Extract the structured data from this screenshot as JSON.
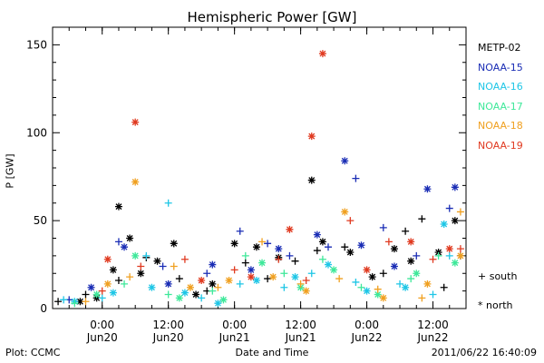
{
  "chart_data": {
    "type": "scatter",
    "title": "Hemispheric Power [GW]",
    "ylabel": "P [GW]",
    "xlabel": "Date and Time",
    "ylim": [
      0,
      160
    ],
    "y_ticks": [
      0,
      50,
      100,
      150
    ],
    "x_range": [
      "2011-06-19T15:00",
      "2011-06-22T18:00"
    ],
    "x_ticks": [
      {
        "time": "2011-06-20T00:00",
        "line1": "0:00",
        "line2": "Jun20"
      },
      {
        "time": "2011-06-20T12:00",
        "line1": "12:00",
        "line2": "Jun20"
      },
      {
        "time": "2011-06-21T00:00",
        "line1": "0:00",
        "line2": "Jun21"
      },
      {
        "time": "2011-06-21T12:00",
        "line1": "12:00",
        "line2": "Jun21"
      },
      {
        "time": "2011-06-22T00:00",
        "line1": "0:00",
        "line2": "Jun22"
      },
      {
        "time": "2011-06-22T12:00",
        "line1": "12:00",
        "line2": "Jun22"
      }
    ],
    "marker_key": [
      {
        "symbol": "+",
        "label": "south"
      },
      {
        "symbol": "*",
        "label": "north"
      }
    ],
    "series": [
      {
        "name": "METP-02",
        "color": "#000000",
        "south": [
          [
            "2011-06-19T16:00",
            4
          ],
          [
            "2011-06-19T21:00",
            8
          ],
          [
            "2011-06-20T03:00",
            16
          ],
          [
            "2011-06-20T08:00",
            29
          ],
          [
            "2011-06-20T14:00",
            17
          ],
          [
            "2011-06-20T19:00",
            10
          ],
          [
            "2011-06-21T02:00",
            26
          ],
          [
            "2011-06-21T06:00",
            17
          ],
          [
            "2011-06-21T11:00",
            27
          ],
          [
            "2011-06-21T15:00",
            33
          ],
          [
            "2011-06-21T20:00",
            35
          ],
          [
            "2011-06-22T03:00",
            20
          ],
          [
            "2011-06-22T07:00",
            44
          ],
          [
            "2011-06-22T10:00",
            51
          ],
          [
            "2011-06-22T14:00",
            12
          ],
          [
            "2011-06-22T17:00",
            30
          ]
        ],
        "north": [
          [
            "2011-06-19T20:00",
            4
          ],
          [
            "2011-06-19T23:00",
            6
          ],
          [
            "2011-06-20T02:00",
            22
          ],
          [
            "2011-06-20T03:00",
            58
          ],
          [
            "2011-06-20T05:00",
            40
          ],
          [
            "2011-06-20T07:00",
            20
          ],
          [
            "2011-06-20T10:00",
            27
          ],
          [
            "2011-06-20T13:00",
            37
          ],
          [
            "2011-06-20T17:00",
            8
          ],
          [
            "2011-06-20T20:00",
            14
          ],
          [
            "2011-06-21T00:00",
            37
          ],
          [
            "2011-06-21T04:00",
            35
          ],
          [
            "2011-06-21T08:00",
            29
          ],
          [
            "2011-06-21T14:00",
            73
          ],
          [
            "2011-06-21T16:00",
            38
          ],
          [
            "2011-06-21T21:00",
            32
          ],
          [
            "2011-06-22T01:00",
            18
          ],
          [
            "2011-06-22T05:00",
            34
          ],
          [
            "2011-06-22T08:00",
            27
          ],
          [
            "2011-06-22T13:00",
            32
          ],
          [
            "2011-06-22T16:00",
            50
          ]
        ]
      },
      {
        "name": "NOAA-15",
        "color": "#1a2db5",
        "south": [
          [
            "2011-06-19T18:00",
            5
          ],
          [
            "2011-06-20T03:00",
            38
          ],
          [
            "2011-06-20T11:00",
            24
          ],
          [
            "2011-06-20T19:00",
            20
          ],
          [
            "2011-06-21T01:00",
            44
          ],
          [
            "2011-06-21T06:00",
            37
          ],
          [
            "2011-06-21T10:00",
            30
          ],
          [
            "2011-06-21T17:00",
            35
          ],
          [
            "2011-06-21T22:00",
            74
          ],
          [
            "2011-06-22T03:00",
            46
          ],
          [
            "2011-06-22T09:00",
            30
          ],
          [
            "2011-06-22T15:00",
            57
          ]
        ],
        "north": [
          [
            "2011-06-19T22:00",
            12
          ],
          [
            "2011-06-20T04:00",
            35
          ],
          [
            "2011-06-20T12:00",
            14
          ],
          [
            "2011-06-20T20:00",
            25
          ],
          [
            "2011-06-21T03:00",
            22
          ],
          [
            "2011-06-21T08:00",
            34
          ],
          [
            "2011-06-21T15:00",
            42
          ],
          [
            "2011-06-21T20:00",
            84
          ],
          [
            "2011-06-21T23:00",
            36
          ],
          [
            "2011-06-22T05:00",
            24
          ],
          [
            "2011-06-22T11:00",
            68
          ],
          [
            "2011-06-22T16:00",
            69
          ]
        ]
      },
      {
        "name": "NOAA-16",
        "color": "#1ec6e6",
        "south": [
          [
            "2011-06-19T17:00",
            5
          ],
          [
            "2011-06-20T00:00",
            6
          ],
          [
            "2011-06-20T08:00",
            30
          ],
          [
            "2011-06-20T12:00",
            60
          ],
          [
            "2011-06-20T18:00",
            6
          ],
          [
            "2011-06-21T01:00",
            14
          ],
          [
            "2011-06-21T09:00",
            12
          ],
          [
            "2011-06-21T14:00",
            20
          ],
          [
            "2011-06-21T22:00",
            15
          ],
          [
            "2011-06-22T06:00",
            14
          ],
          [
            "2011-06-22T12:00",
            8
          ],
          [
            "2011-06-22T15:00",
            30
          ]
        ],
        "north": [
          [
            "2011-06-19T19:00",
            4
          ],
          [
            "2011-06-20T02:00",
            9
          ],
          [
            "2011-06-20T09:00",
            12
          ],
          [
            "2011-06-20T15:00",
            9
          ],
          [
            "2011-06-20T21:00",
            3
          ],
          [
            "2011-06-21T04:00",
            16
          ],
          [
            "2011-06-21T11:00",
            18
          ],
          [
            "2011-06-21T17:00",
            25
          ],
          [
            "2011-06-22T00:00",
            10
          ],
          [
            "2011-06-22T07:00",
            12
          ],
          [
            "2011-06-22T14:00",
            48
          ]
        ]
      },
      {
        "name": "NOAA-17",
        "color": "#3ee89a",
        "south": [
          [
            "2011-06-19T19:00",
            3
          ],
          [
            "2011-06-20T04:00",
            14
          ],
          [
            "2011-06-20T12:00",
            8
          ],
          [
            "2011-06-20T20:00",
            10
          ],
          [
            "2011-06-21T02:00",
            30
          ],
          [
            "2011-06-21T09:00",
            20
          ],
          [
            "2011-06-21T16:00",
            28
          ],
          [
            "2011-06-21T23:00",
            12
          ],
          [
            "2011-06-22T08:00",
            17
          ],
          [
            "2011-06-22T13:00",
            30
          ]
        ],
        "north": [
          [
            "2011-06-19T23:00",
            8
          ],
          [
            "2011-06-20T06:00",
            30
          ],
          [
            "2011-06-20T14:00",
            6
          ],
          [
            "2011-06-20T22:00",
            5
          ],
          [
            "2011-06-21T05:00",
            26
          ],
          [
            "2011-06-21T12:00",
            12
          ],
          [
            "2011-06-21T18:00",
            22
          ],
          [
            "2011-06-22T02:00",
            8
          ],
          [
            "2011-06-22T09:00",
            20
          ],
          [
            "2011-06-22T16:00",
            26
          ]
        ]
      },
      {
        "name": "NOAA-18",
        "color": "#f0a020",
        "south": [
          [
            "2011-06-19T21:00",
            4
          ],
          [
            "2011-06-20T05:00",
            18
          ],
          [
            "2011-06-20T13:00",
            24
          ],
          [
            "2011-06-20T21:00",
            12
          ],
          [
            "2011-06-21T05:00",
            38
          ],
          [
            "2011-06-21T12:00",
            14
          ],
          [
            "2011-06-21T19:00",
            17
          ],
          [
            "2011-06-22T02:00",
            11
          ],
          [
            "2011-06-22T10:00",
            6
          ],
          [
            "2011-06-22T17:00",
            55
          ]
        ],
        "north": [
          [
            "2011-06-20T01:00",
            14
          ],
          [
            "2011-06-20T06:00",
            72
          ],
          [
            "2011-06-20T16:00",
            12
          ],
          [
            "2011-06-20T23:00",
            16
          ],
          [
            "2011-06-21T07:00",
            18
          ],
          [
            "2011-06-21T13:00",
            10
          ],
          [
            "2011-06-21T20:00",
            55
          ],
          [
            "2011-06-22T03:00",
            6
          ],
          [
            "2011-06-22T11:00",
            14
          ],
          [
            "2011-06-22T17:00",
            30
          ]
        ]
      },
      {
        "name": "NOAA-19",
        "color": "#e03a20",
        "south": [
          [
            "2011-06-20T00:00",
            10
          ],
          [
            "2011-06-20T07:00",
            24
          ],
          [
            "2011-06-20T15:00",
            28
          ],
          [
            "2011-06-21T00:00",
            22
          ],
          [
            "2011-06-21T08:00",
            28
          ],
          [
            "2011-06-21T13:00",
            16
          ],
          [
            "2011-06-21T21:00",
            50
          ],
          [
            "2011-06-22T04:00",
            38
          ],
          [
            "2011-06-22T12:00",
            28
          ],
          [
            "2011-06-22T17:00",
            34
          ]
        ],
        "north": [
          [
            "2011-06-20T01:00",
            28
          ],
          [
            "2011-06-20T06:00",
            106
          ],
          [
            "2011-06-20T18:00",
            16
          ],
          [
            "2011-06-21T03:00",
            18
          ],
          [
            "2011-06-21T10:00",
            45
          ],
          [
            "2011-06-21T14:00",
            98
          ],
          [
            "2011-06-21T16:00",
            145
          ],
          [
            "2011-06-22T00:00",
            22
          ],
          [
            "2011-06-22T08:00",
            38
          ],
          [
            "2011-06-22T15:00",
            34
          ]
        ]
      }
    ]
  },
  "footer": {
    "plot_source": "Plot: CCMC",
    "timestamp": "2011/06/22 16:40:09"
  }
}
